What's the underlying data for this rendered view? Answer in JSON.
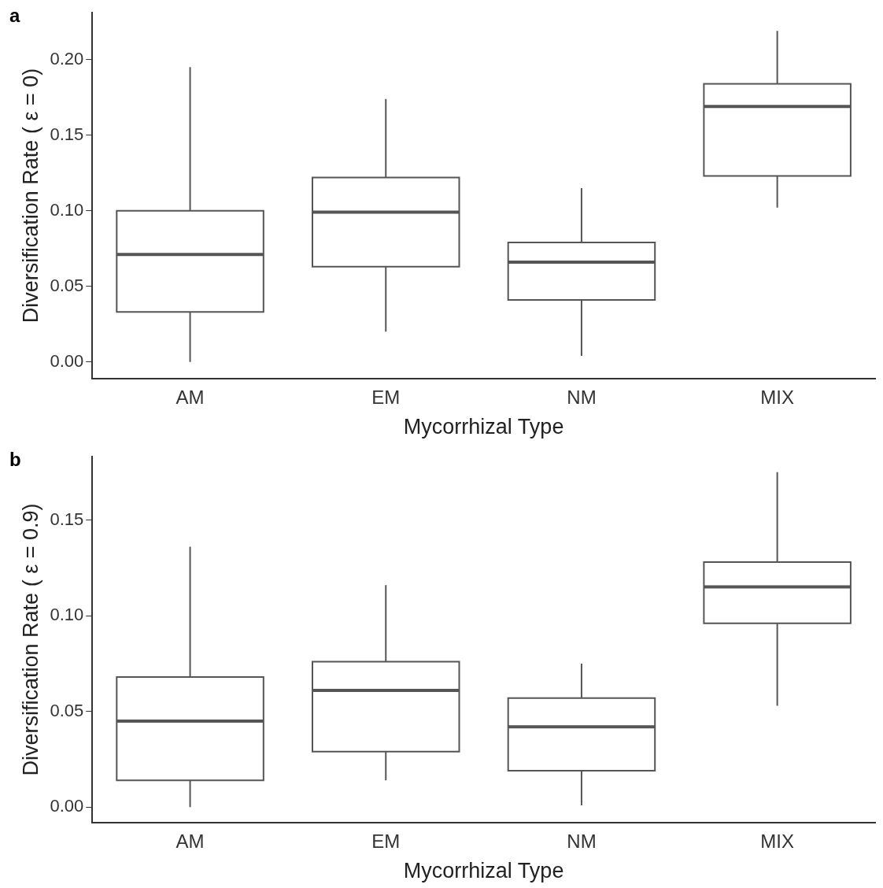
{
  "chart_data": [
    {
      "type": "box",
      "title": "a",
      "xlabel": "Mycorrhizal Type",
      "ylabel": "Diversification Rate ( ε = 0)",
      "categories": [
        "AM",
        "EM",
        "NM",
        "MIX"
      ],
      "ylim": [
        -0.011,
        0.231
      ],
      "yticks": [
        {
          "value": 0,
          "label": "0.00"
        },
        {
          "value": 0.05,
          "label": "0.05"
        },
        {
          "value": 0.1,
          "label": "0.10"
        },
        {
          "value": 0.15,
          "label": "0.15"
        },
        {
          "value": 0.2,
          "label": "0.20"
        }
      ],
      "grid": false,
      "legend": false,
      "boxes": [
        {
          "low": 0,
          "q1": 0.033,
          "median": 0.071,
          "q3": 0.1,
          "high": 0.195
        },
        {
          "low": 0.02,
          "q1": 0.063,
          "median": 0.099,
          "q3": 0.122,
          "high": 0.174
        },
        {
          "low": 0.004,
          "q1": 0.041,
          "median": 0.066,
          "q3": 0.079,
          "high": 0.115
        },
        {
          "low": 0.102,
          "q1": 0.123,
          "median": 0.169,
          "q3": 0.184,
          "high": 0.219
        }
      ]
    },
    {
      "type": "box",
      "title": "b",
      "xlabel": "Mycorrhizal Type",
      "ylabel": "Diversification Rate ( ε = 0.9)",
      "categories": [
        "AM",
        "EM",
        "NM",
        "MIX"
      ],
      "ylim": [
        -0.008,
        0.183
      ],
      "yticks": [
        {
          "value": 0,
          "label": "0.00"
        },
        {
          "value": 0.05,
          "label": "0.05"
        },
        {
          "value": 0.1,
          "label": "0.10"
        },
        {
          "value": 0.15,
          "label": "0.15"
        }
      ],
      "grid": false,
      "legend": false,
      "boxes": [
        {
          "low": 0,
          "q1": 0.014,
          "median": 0.045,
          "q3": 0.068,
          "high": 0.136
        },
        {
          "low": 0.014,
          "q1": 0.029,
          "median": 0.061,
          "q3": 0.076,
          "high": 0.116
        },
        {
          "low": 0.001,
          "q1": 0.019,
          "median": 0.042,
          "q3": 0.057,
          "high": 0.075
        },
        {
          "low": 0.053,
          "q1": 0.096,
          "median": 0.115,
          "q3": 0.128,
          "high": 0.175
        }
      ]
    }
  ]
}
